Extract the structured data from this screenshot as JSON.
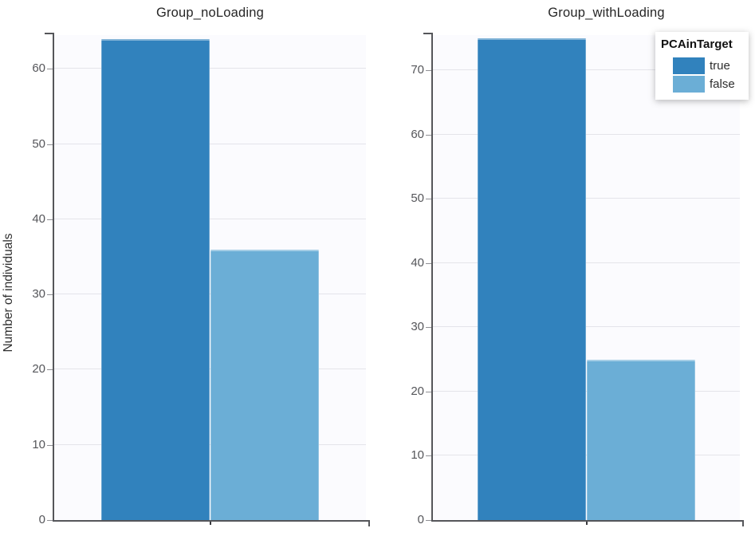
{
  "figure": {
    "ylabel": "Number of individuals",
    "legend": {
      "title": "PCAinTarget",
      "position": "top-right",
      "entries": [
        {
          "label": "true",
          "color": "#3182bd"
        },
        {
          "label": "false",
          "color": "#6baed6"
        }
      ]
    },
    "style": {
      "bar_true": "#3182bd",
      "bar_false": "#6baed6",
      "panel_bg": "#fbfbfe",
      "grid": "#e4e4ea",
      "axis": "#55565a",
      "tick_label": "#55565a",
      "title_text": "#262626"
    }
  },
  "chart_data": [
    {
      "type": "bar",
      "title": "Group_noLoading",
      "legend_title": "PCAinTarget",
      "categories": [
        "true",
        "false"
      ],
      "values": [
        64,
        36
      ],
      "xlabel": "",
      "ylabel": "Number of individuals",
      "ylim": [
        0,
        64.5
      ],
      "yticks": [
        0,
        10,
        20,
        30,
        40,
        50,
        60
      ],
      "grid": "horizontal-only",
      "legend_position": "top-right"
    },
    {
      "type": "bar",
      "title": "Group_withLoading",
      "legend_title": "PCAinTarget",
      "categories": [
        "true",
        "false"
      ],
      "values": [
        75,
        25
      ],
      "xlabel": "",
      "ylabel": "Number of individuals",
      "ylim": [
        0,
        75.5
      ],
      "yticks": [
        0,
        10,
        20,
        30,
        40,
        50,
        60,
        70
      ],
      "grid": "horizontal-only",
      "legend_position": "top-right"
    }
  ]
}
